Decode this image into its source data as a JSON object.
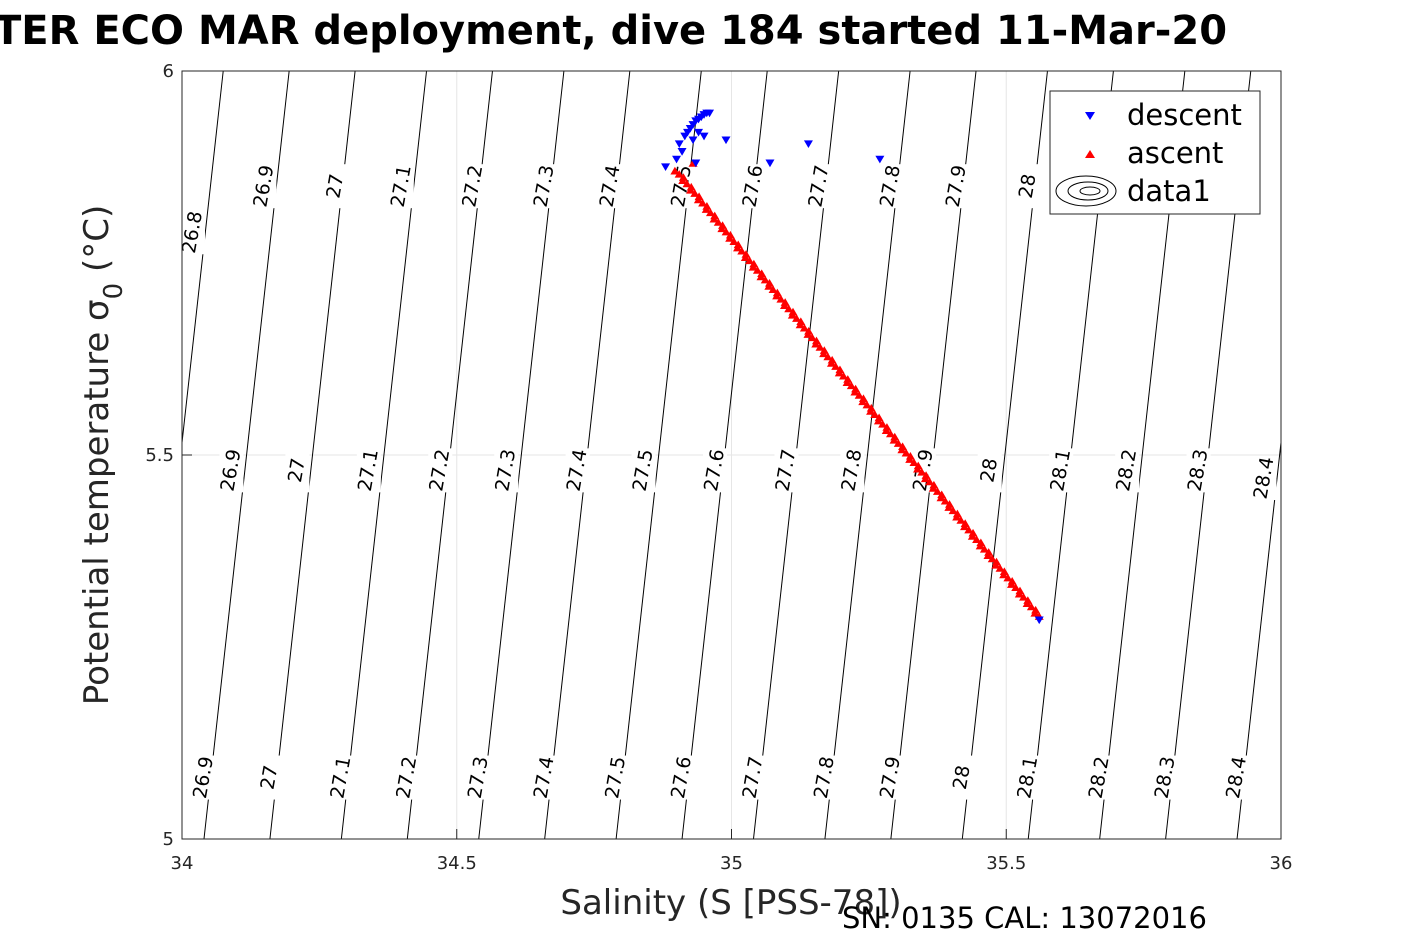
{
  "chart_data": {
    "type": "scatter",
    "title": "TER ECO MAR deployment, dive 184 started 11-Mar-20",
    "xlabel": "Salinity (S [PSS-78])",
    "ylabel_main": "Potential temperature σ",
    "ylabel_sub": "0",
    "ylabel_unit": " (°C)",
    "xlim": [
      34,
      36
    ],
    "ylim": [
      5,
      6
    ],
    "xticks": [
      "34",
      "34.5",
      "35",
      "35.5",
      "36"
    ],
    "yticks": [
      "5",
      "5.5",
      "6"
    ],
    "grid": true,
    "legend_position": "top-right",
    "legend": [
      "descent",
      "ascent",
      "data1"
    ],
    "footer": "SN: 0135  CAL: 13072016",
    "colors": {
      "descent": "#0000ff",
      "ascent": "#ff0000",
      "contour": "#000000",
      "grid": "#e6e6e6"
    },
    "isopycnals": [
      {
        "sigma": 26.8,
        "x_at_5": 33.92,
        "labels": [
          {
            "text": "26.8",
            "x": 34.02,
            "y": 5.79
          }
        ]
      },
      {
        "sigma": 26.9,
        "x_at_5": 34.04,
        "labels": [
          {
            "text": "26.9",
            "x": 34.15,
            "y": 5.85
          },
          {
            "text": "26.9",
            "x": 34.09,
            "y": 5.48
          },
          {
            "text": "26.9",
            "x": 34.04,
            "y": 5.08
          }
        ]
      },
      {
        "sigma": 27.0,
        "x_at_5": 34.16,
        "labels": [
          {
            "text": "27",
            "x": 34.28,
            "y": 5.85
          },
          {
            "text": "27",
            "x": 34.21,
            "y": 5.48
          },
          {
            "text": "27",
            "x": 34.16,
            "y": 5.08
          }
        ]
      },
      {
        "sigma": 27.1,
        "x_at_5": 34.29,
        "labels": [
          {
            "text": "27.1",
            "x": 34.4,
            "y": 5.85
          },
          {
            "text": "27.1",
            "x": 34.34,
            "y": 5.48
          },
          {
            "text": "27.1",
            "x": 34.29,
            "y": 5.08
          }
        ]
      },
      {
        "sigma": 27.2,
        "x_at_5": 34.41,
        "labels": [
          {
            "text": "27.2",
            "x": 34.53,
            "y": 5.85
          },
          {
            "text": "27.2",
            "x": 34.47,
            "y": 5.48
          },
          {
            "text": "27.2",
            "x": 34.41,
            "y": 5.08
          }
        ]
      },
      {
        "sigma": 27.3,
        "x_at_5": 34.54,
        "labels": [
          {
            "text": "27.3",
            "x": 34.66,
            "y": 5.85
          },
          {
            "text": "27.3",
            "x": 34.59,
            "y": 5.48
          },
          {
            "text": "27.3",
            "x": 34.54,
            "y": 5.08
          }
        ]
      },
      {
        "sigma": 27.4,
        "x_at_5": 34.66,
        "labels": [
          {
            "text": "27.4",
            "x": 34.78,
            "y": 5.85
          },
          {
            "text": "27.4",
            "x": 34.72,
            "y": 5.48
          },
          {
            "text": "27.4",
            "x": 34.66,
            "y": 5.08
          }
        ]
      },
      {
        "sigma": 27.5,
        "x_at_5": 34.79,
        "labels": [
          {
            "text": "27.5",
            "x": 34.84,
            "y": 5.48
          },
          {
            "text": "27.5",
            "x": 34.79,
            "y": 5.08
          }
        ]
      },
      {
        "sigma": 27.6,
        "x_at_5": 34.91,
        "labels": [
          {
            "text": "27.6",
            "x": 34.97,
            "y": 5.48
          },
          {
            "text": "27.6",
            "x": 34.91,
            "y": 5.08
          }
        ]
      },
      {
        "sigma": 27.5,
        "x_at_5": 34.79,
        "labels": [
          {
            "text": "27.5",
            "x": 34.91,
            "y": 5.85
          }
        ]
      },
      {
        "sigma": 27.6,
        "x_at_5": 34.91,
        "labels": [
          {
            "text": "27.6",
            "x": 35.04,
            "y": 5.85
          }
        ]
      },
      {
        "sigma": 27.7,
        "x_at_5": 35.04,
        "labels": [
          {
            "text": "27.7",
            "x": 35.16,
            "y": 5.85
          },
          {
            "text": "27.7",
            "x": 35.1,
            "y": 5.48
          },
          {
            "text": "27.7",
            "x": 35.04,
            "y": 5.08
          }
        ]
      },
      {
        "sigma": 27.8,
        "x_at_5": 35.17,
        "labels": [
          {
            "text": "27.8",
            "x": 35.29,
            "y": 5.85
          },
          {
            "text": "27.8",
            "x": 35.22,
            "y": 5.48
          },
          {
            "text": "27.8",
            "x": 35.17,
            "y": 5.08
          }
        ]
      },
      {
        "sigma": 27.9,
        "x_at_5": 35.29,
        "labels": [
          {
            "text": "27.9",
            "x": 35.41,
            "y": 5.85
          },
          {
            "text": "27.9",
            "x": 35.35,
            "y": 5.48
          },
          {
            "text": "27.9",
            "x": 35.29,
            "y": 5.08
          }
        ]
      },
      {
        "sigma": 28.0,
        "x_at_5": 35.42,
        "labels": [
          {
            "text": "28",
            "x": 35.54,
            "y": 5.85
          },
          {
            "text": "28",
            "x": 35.47,
            "y": 5.48
          },
          {
            "text": "28",
            "x": 35.42,
            "y": 5.08
          }
        ]
      },
      {
        "sigma": 28.1,
        "x_at_5": 35.54,
        "labels": [
          {
            "text": "28.1",
            "x": 35.6,
            "y": 5.48
          },
          {
            "text": "28.1",
            "x": 35.54,
            "y": 5.08
          }
        ]
      },
      {
        "sigma": 28.2,
        "x_at_5": 35.67,
        "labels": [
          {
            "text": "28.2",
            "x": 35.72,
            "y": 5.48
          },
          {
            "text": "28.2",
            "x": 35.67,
            "y": 5.08
          }
        ]
      },
      {
        "sigma": 28.3,
        "x_at_5": 35.79,
        "labels": [
          {
            "text": "28.3",
            "x": 35.85,
            "y": 5.48
          },
          {
            "text": "28.3",
            "x": 35.79,
            "y": 5.08
          }
        ]
      },
      {
        "sigma": 28.4,
        "x_at_5": 35.92,
        "labels": [
          {
            "text": "28.4",
            "x": 35.97,
            "y": 5.47
          },
          {
            "text": "28.4",
            "x": 35.92,
            "y": 5.08
          }
        ]
      }
    ],
    "series": [
      {
        "name": "descent",
        "marker": "triangle-down",
        "x": [
          34.88,
          34.9,
          34.91,
          34.905,
          34.915,
          34.92,
          34.925,
          34.93,
          34.935,
          34.94,
          34.945,
          34.95,
          34.955,
          34.96,
          34.94,
          34.93,
          34.95,
          34.935,
          34.99,
          35.07,
          35.14,
          35.27,
          35.56
        ],
        "y": [
          5.875,
          5.885,
          5.895,
          5.905,
          5.915,
          5.92,
          5.925,
          5.93,
          5.935,
          5.937,
          5.94,
          5.943,
          5.945,
          5.945,
          5.92,
          5.91,
          5.915,
          5.88,
          5.91,
          5.88,
          5.905,
          5.885,
          5.285
        ]
      },
      {
        "name": "ascent",
        "marker": "triangle-up",
        "x_start": 34.9,
        "y_start": 5.87,
        "x_end": 35.56,
        "y_end": 5.29,
        "n_points": 140,
        "extra_x": [
          34.93
        ],
        "extra_y": [
          5.88
        ]
      }
    ]
  },
  "footer_text": "SN: 0135  CAL: 13072016"
}
